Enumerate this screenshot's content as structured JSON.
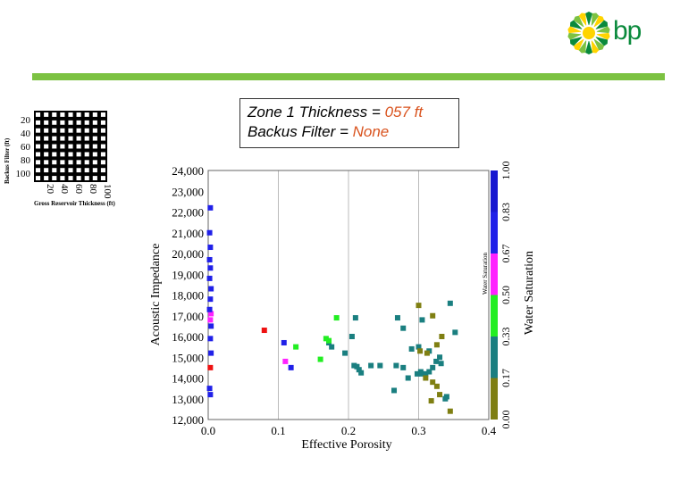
{
  "brand": {
    "logo_text": "bp",
    "logo_colors": [
      "#0a8a3c",
      "#7cc242",
      "#ffd400"
    ]
  },
  "info": {
    "line1_prefix": "Zone 1 Thickness = ",
    "line1_value": "057 ft",
    "line2_prefix": "Backus Filter = ",
    "line2_value": "None"
  },
  "grid_selector": {
    "ylabel": "Backus Filter (ft)",
    "xlabel": "Gross Reservoir Thickness (ft)",
    "y_ticks": [
      "20",
      "40",
      "60",
      "80",
      "100"
    ],
    "x_ticks": [
      "20",
      "40",
      "60",
      "80",
      "100"
    ],
    "rows": 9,
    "cols": 9
  },
  "colorbar": {
    "inner_label": "Water Saturation",
    "title": "Water Saturation",
    "ticks": [
      "0.00",
      "0.17",
      "0.33",
      "0.50",
      "0.67",
      "0.83",
      "1.00"
    ],
    "colors": [
      "#7f7f12",
      "#1a7f80",
      "#22ee22",
      "#ff22ff",
      "#2020e8",
      "#1818d0"
    ]
  },
  "chart_data": {
    "type": "scatter",
    "xlabel": "Effective Porosity",
    "ylabel": "Acoustic Impedance",
    "xlim": [
      0,
      0.4
    ],
    "ylim": [
      12000,
      24000
    ],
    "x_ticks": [
      "0.0",
      "0.1",
      "0.2",
      "0.3",
      "0.4"
    ],
    "y_ticks": [
      "12,000",
      "13,000",
      "14,000",
      "15,000",
      "16,000",
      "17,000",
      "18,000",
      "19,000",
      "20,000",
      "21,000",
      "22,000",
      "23,000",
      "24,000"
    ],
    "grid": "vertical",
    "series": [
      {
        "color": "#1a7f80",
        "points": [
          [
            0.172,
            15700
          ],
          [
            0.176,
            15500
          ],
          [
            0.195,
            15200
          ],
          [
            0.208,
            14600
          ],
          [
            0.212,
            14550
          ],
          [
            0.215,
            14400
          ],
          [
            0.218,
            14250
          ],
          [
            0.232,
            14600
          ],
          [
            0.245,
            14600
          ],
          [
            0.265,
            13400
          ],
          [
            0.268,
            14600
          ],
          [
            0.278,
            14500
          ],
          [
            0.285,
            14000
          ],
          [
            0.298,
            14200
          ],
          [
            0.303,
            14300
          ],
          [
            0.305,
            14200
          ],
          [
            0.31,
            14200
          ],
          [
            0.315,
            14300
          ],
          [
            0.32,
            14500
          ],
          [
            0.325,
            14800
          ],
          [
            0.33,
            15000
          ],
          [
            0.332,
            14700
          ],
          [
            0.338,
            13000
          ],
          [
            0.34,
            13100
          ],
          [
            0.345,
            17600
          ],
          [
            0.352,
            16200
          ],
          [
            0.29,
            15400
          ],
          [
            0.278,
            16400
          ],
          [
            0.305,
            16800
          ],
          [
            0.27,
            16900
          ],
          [
            0.205,
            16000
          ],
          [
            0.21,
            16900
          ],
          [
            0.3,
            15500
          ],
          [
            0.315,
            15300
          ]
        ]
      },
      {
        "color": "#7f7f12",
        "points": [
          [
            0.345,
            12400
          ],
          [
            0.318,
            12900
          ],
          [
            0.33,
            13200
          ],
          [
            0.31,
            14000
          ],
          [
            0.32,
            13800
          ],
          [
            0.326,
            13600
          ],
          [
            0.302,
            15300
          ],
          [
            0.312,
            15200
          ],
          [
            0.326,
            15600
          ],
          [
            0.333,
            16000
          ],
          [
            0.32,
            17000
          ],
          [
            0.3,
            17500
          ]
        ]
      },
      {
        "color": "#22ee22",
        "points": [
          [
            0.16,
            14900
          ],
          [
            0.125,
            15500
          ],
          [
            0.168,
            15900
          ],
          [
            0.172,
            15800
          ],
          [
            0.183,
            16900
          ]
        ]
      },
      {
        "color": "#ff22ff",
        "points": [
          [
            0.11,
            14800
          ],
          [
            0.003,
            16800
          ],
          [
            0.004,
            17100
          ]
        ]
      },
      {
        "color": "#ee1111",
        "points": [
          [
            0.003,
            14500
          ],
          [
            0.08,
            16300
          ]
        ]
      },
      {
        "color": "#2020e8",
        "points": [
          [
            0.002,
            13500
          ],
          [
            0.003,
            13200
          ],
          [
            0.004,
            15200
          ],
          [
            0.003,
            15900
          ],
          [
            0.004,
            16500
          ],
          [
            0.002,
            17300
          ],
          [
            0.003,
            17800
          ],
          [
            0.004,
            18300
          ],
          [
            0.002,
            18800
          ],
          [
            0.003,
            19300
          ],
          [
            0.002,
            19700
          ],
          [
            0.003,
            20300
          ],
          [
            0.002,
            21000
          ],
          [
            0.003,
            22200
          ],
          [
            0.108,
            15700
          ],
          [
            0.118,
            14500
          ]
        ]
      }
    ],
    "annotations": []
  }
}
